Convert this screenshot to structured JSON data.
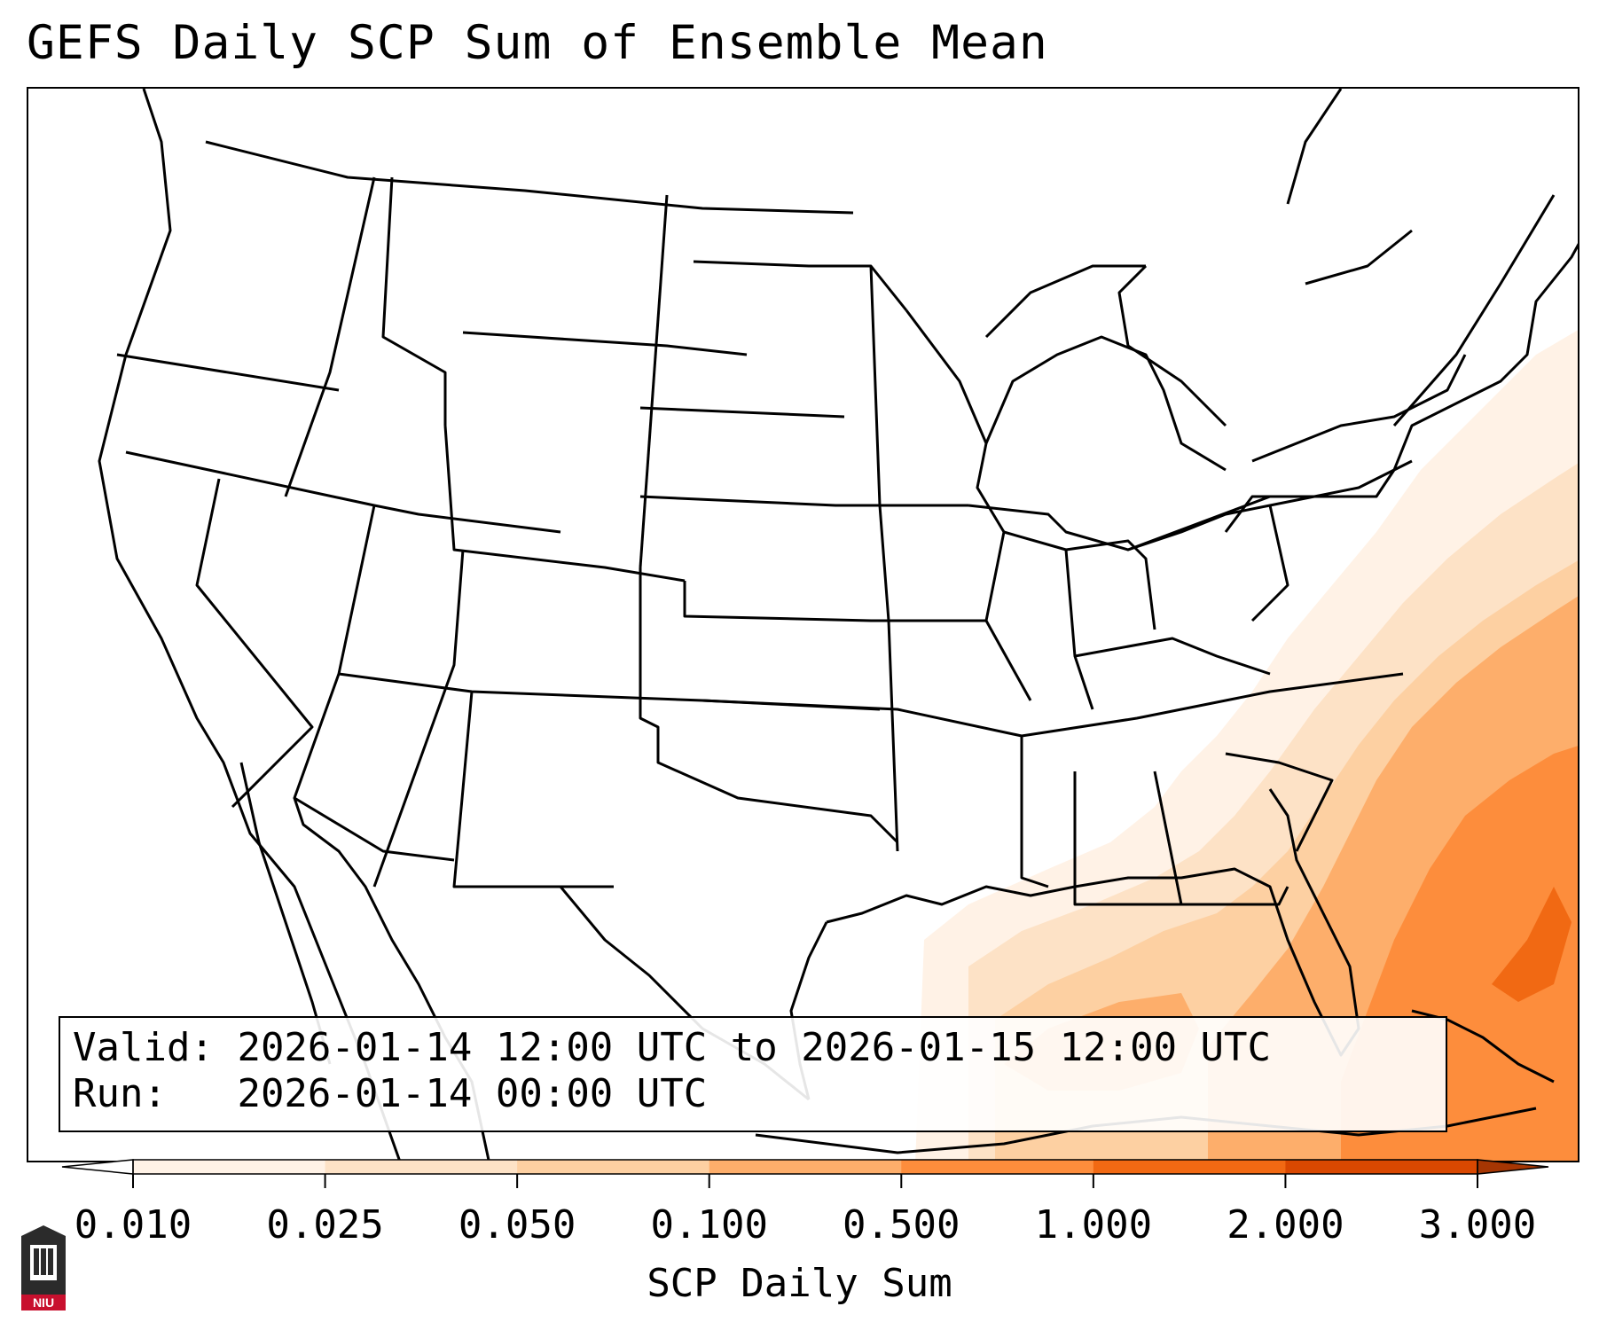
{
  "title": "GEFS Daily SCP Sum of Ensemble Mean",
  "info": {
    "valid_label": "Valid:",
    "valid_value": "2026-01-14 12:00 UTC to 2026-01-15 12:00 UTC",
    "run_label": "Run:",
    "run_value": "2026-01-14 00:00 UTC"
  },
  "colorbar": {
    "label": "SCP Daily Sum",
    "ticks": [
      "0.010",
      "0.025",
      "0.050",
      "0.100",
      "0.500",
      "1.000",
      "2.000",
      "3.000"
    ],
    "colors": [
      "#fff2e6",
      "#fde2c6",
      "#fdd0a2",
      "#fdae6b",
      "#fd8d3c",
      "#f16913",
      "#d94801"
    ],
    "under_color": "#ffffff",
    "over_color": "#a63603",
    "extend": "both"
  },
  "logo": {
    "text": "NIU"
  }
}
